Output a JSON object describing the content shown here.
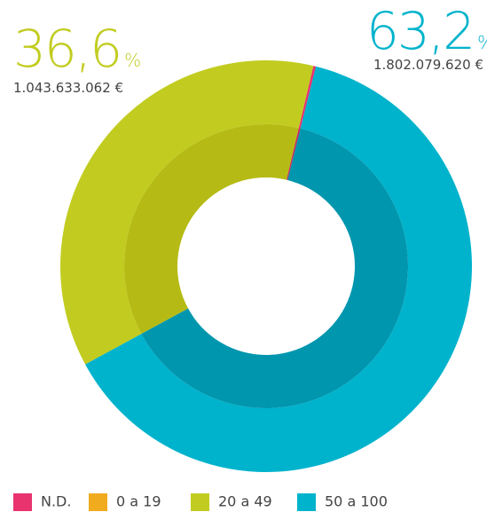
{
  "chart_data": {
    "type": "donut",
    "categories": [
      "N.D.",
      "0 a 19",
      "20 a 49",
      "50 a 100"
    ],
    "values": [
      0.2,
      0,
      36.6,
      63.2
    ],
    "colors": [
      "#e8336e",
      "#f0ac1e",
      "#c2cc20",
      "#00b3cc"
    ],
    "inner_colors": [
      "#c92a5e",
      "#d69516",
      "#b5bb14",
      "#0096ae"
    ],
    "summary": [
      {
        "value": 36.6,
        "label": "36,6",
        "unit": "%",
        "amount": 1043633062,
        "amount_label": "1.043.633.062 €",
        "color": "#c2cc20"
      },
      {
        "value": 63.2,
        "label": "63,2",
        "unit": "%",
        "amount": 1802079620,
        "amount_label": "1.802.079.620 €",
        "color": "#00b3cc"
      }
    ],
    "legend": "bottom"
  }
}
